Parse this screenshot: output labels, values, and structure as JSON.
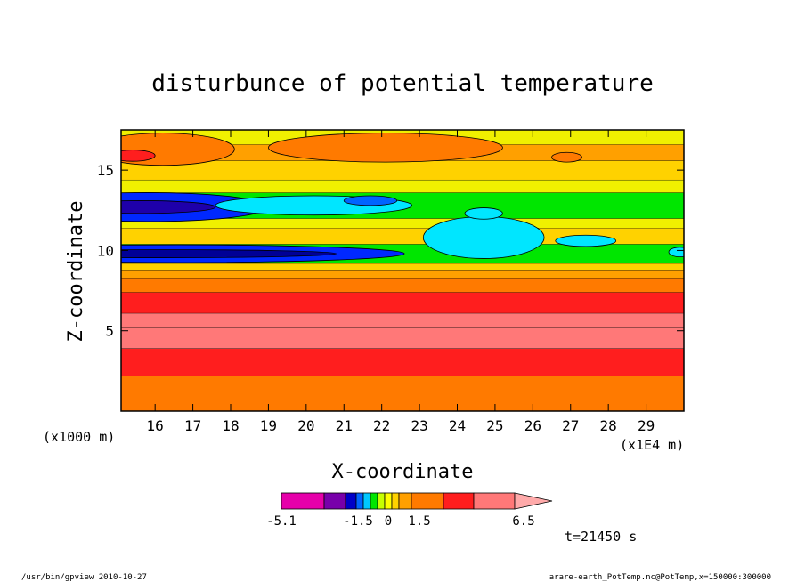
{
  "chart_data": {
    "type": "heatmap",
    "title": "disturbunce of potential temperature",
    "xlabel": "X-coordinate",
    "ylabel": "Z-coordinate",
    "x_unit_left": "(x1000 m)",
    "x_unit_right": "(x1E4 m)",
    "xlim": [
      15.1,
      30
    ],
    "ylim": [
      0,
      17.5
    ],
    "x_ticks": [
      "16",
      "17",
      "18",
      "19",
      "20",
      "21",
      "22",
      "23",
      "24",
      "25",
      "26",
      "27",
      "28",
      "29"
    ],
    "y_ticks": [
      "5",
      "10",
      "15"
    ],
    "bands": [
      {
        "z0": 0.0,
        "z1": 2.2,
        "color": "#ff7a00"
      },
      {
        "z0": 2.2,
        "z1": 3.9,
        "color": "#ff1e1e"
      },
      {
        "z0": 3.9,
        "z1": 5.2,
        "color": "#ff7878"
      },
      {
        "z0": 5.2,
        "z1": 6.1,
        "color": "#ff7878"
      },
      {
        "z0": 6.1,
        "z1": 7.4,
        "color": "#ff1e1e"
      },
      {
        "z0": 7.4,
        "z1": 8.3,
        "color": "#ff7a00"
      },
      {
        "z0": 8.3,
        "z1": 8.8,
        "color": "#ffa000"
      },
      {
        "z0": 8.8,
        "z1": 9.2,
        "color": "#ffd200"
      },
      {
        "z0": 9.2,
        "z1": 10.4,
        "color": "#00e600"
      },
      {
        "z0": 10.4,
        "z1": 11.4,
        "color": "#ffd200"
      },
      {
        "z0": 11.4,
        "z1": 12.0,
        "color": "#f0f000"
      },
      {
        "z0": 12.0,
        "z1": 13.6,
        "color": "#00e600"
      },
      {
        "z0": 13.6,
        "z1": 14.4,
        "color": "#f0f000"
      },
      {
        "z0": 14.4,
        "z1": 15.6,
        "color": "#ffd200"
      },
      {
        "z0": 15.6,
        "z1": 16.6,
        "color": "#ffa000"
      },
      {
        "z0": 16.6,
        "z1": 17.5,
        "color": "#f0f000"
      }
    ],
    "blobs": [
      {
        "x": 16.6,
        "z": 9.8,
        "rx": 6.0,
        "rz": 0.55,
        "color": "#0028ff"
      },
      {
        "x": 16.2,
        "z": 9.8,
        "rx": 4.6,
        "rz": 0.25,
        "color": "#000096"
      },
      {
        "x": 15.8,
        "z": 12.7,
        "rx": 3.2,
        "rz": 0.9,
        "color": "#0028ff"
      },
      {
        "x": 15.6,
        "z": 12.7,
        "rx": 2.0,
        "rz": 0.4,
        "color": "#1e00aa"
      },
      {
        "x": 20.2,
        "z": 12.8,
        "rx": 2.6,
        "rz": 0.6,
        "color": "#00e6ff"
      },
      {
        "x": 21.7,
        "z": 13.1,
        "rx": 0.7,
        "rz": 0.3,
        "color": "#0064ff"
      },
      {
        "x": 24.7,
        "z": 10.8,
        "rx": 1.6,
        "rz": 1.3,
        "color": "#00e6ff"
      },
      {
        "x": 24.7,
        "z": 12.3,
        "rx": 0.5,
        "rz": 0.35,
        "color": "#00e6ff"
      },
      {
        "x": 27.4,
        "z": 10.6,
        "rx": 0.8,
        "rz": 0.35,
        "color": "#00e6ff"
      },
      {
        "x": 29.9,
        "z": 9.9,
        "rx": 0.3,
        "rz": 0.3,
        "color": "#00e6ff"
      },
      {
        "x": 22.1,
        "z": 16.4,
        "rx": 3.1,
        "rz": 0.9,
        "color": "#ff7a00"
      },
      {
        "x": 16.2,
        "z": 16.3,
        "rx": 1.9,
        "rz": 1.0,
        "color": "#ff7a00"
      },
      {
        "x": 15.4,
        "z": 15.9,
        "rx": 0.6,
        "rz": 0.35,
        "color": "#ff1e1e"
      },
      {
        "x": 26.9,
        "z": 15.8,
        "rx": 0.4,
        "rz": 0.3,
        "color": "#ff7a00"
      }
    ],
    "colorbar": {
      "labels": [
        "-5.1",
        "-1.5",
        "0",
        "1.5",
        "6.5"
      ],
      "colors": [
        "#e600aa",
        "#7800aa",
        "#0000c8",
        "#0064ff",
        "#00c8ff",
        "#00e600",
        "#c8ff00",
        "#ffff00",
        "#ffd200",
        "#ffa000",
        "#ff7a00",
        "#ff1e1e",
        "#ff7878",
        "#ffaaaa"
      ]
    },
    "time_label": "t=21450 s"
  },
  "footer": {
    "left": "/usr/bin/gpview  2010-10-27",
    "right": "arare-earth_PotTemp.nc@PotTemp,x=150000:300000"
  }
}
